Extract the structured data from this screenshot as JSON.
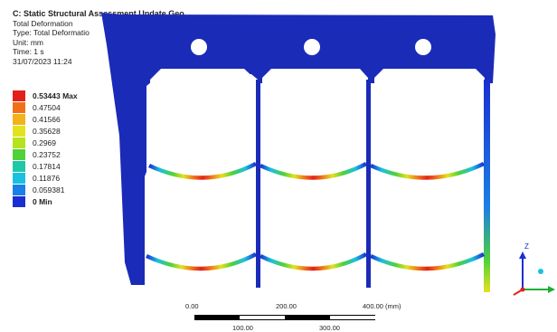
{
  "header": {
    "title": "C: Static Structural Assessment Update Geo",
    "lines": [
      "Total Deformation",
      "Type: Total Deformatio",
      "Unit: mm",
      "Time: 1 s",
      "31/07/2023 11:24"
    ]
  },
  "legend": {
    "entries": [
      {
        "label": "0.53443 Max",
        "color": "#e3211b"
      },
      {
        "label": "0.47504",
        "color": "#f0701a"
      },
      {
        "label": "0.41566",
        "color": "#f3b21b"
      },
      {
        "label": "0.35628",
        "color": "#e4e21f"
      },
      {
        "label": "0.2969",
        "color": "#b7e21f"
      },
      {
        "label": "0.23752",
        "color": "#4fd13a"
      },
      {
        "label": "0.17814",
        "color": "#1fc7a5"
      },
      {
        "label": "0.11876",
        "color": "#19c0e0"
      },
      {
        "label": "0.059381",
        "color": "#1a7fe6"
      },
      {
        "label": "0 Min",
        "color": "#1a2fd1"
      }
    ]
  },
  "scale": {
    "top_labels": [
      "0.00",
      "200.00",
      "400.00 (mm)"
    ],
    "bottom_labels": [
      "100.00",
      "300.00"
    ]
  },
  "triad": {
    "z_label": "Z"
  },
  "colors": {
    "frame_blue": "#1a2bb8",
    "max_red": "#e3211b"
  }
}
